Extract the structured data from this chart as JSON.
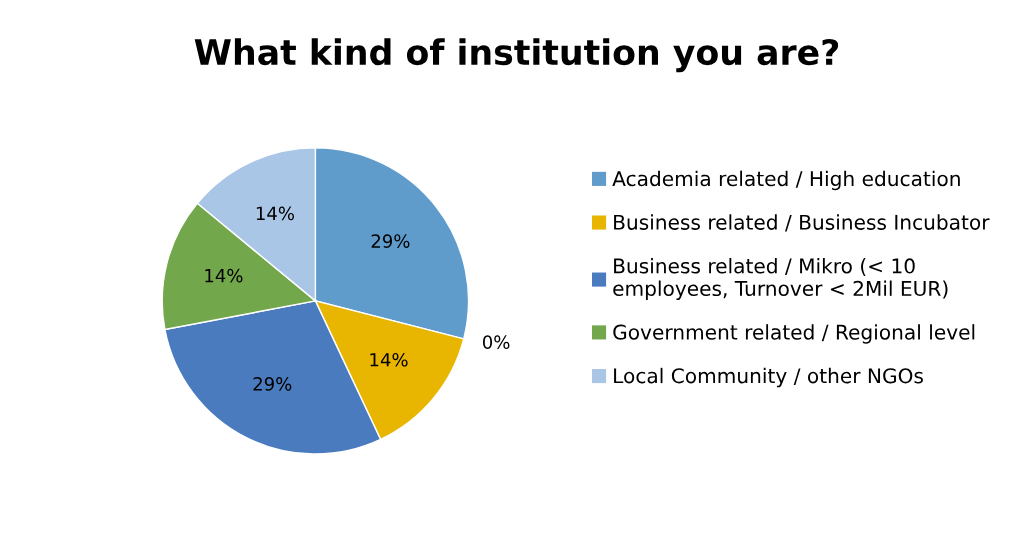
{
  "chart_data": {
    "type": "pie",
    "title": "What kind of institution you are?",
    "categories": [
      "Academia related / High education",
      "Business related / Business Incubator",
      "Business related / Mikro (< 10\nemployees, Turnover < 2Mil EUR)",
      "Government related / Regional level",
      "Local Community / other NGOs"
    ],
    "values": [
      29,
      14,
      29,
      14,
      14
    ],
    "colors": [
      "#5f9ccb",
      "#e8b500",
      "#4a7bbf",
      "#73a74c",
      "#a9c6e6"
    ],
    "value_labels": [
      "29%",
      "14%",
      "29%",
      "14%",
      "14%"
    ],
    "annotations": [
      "0%"
    ],
    "legend": "right"
  }
}
